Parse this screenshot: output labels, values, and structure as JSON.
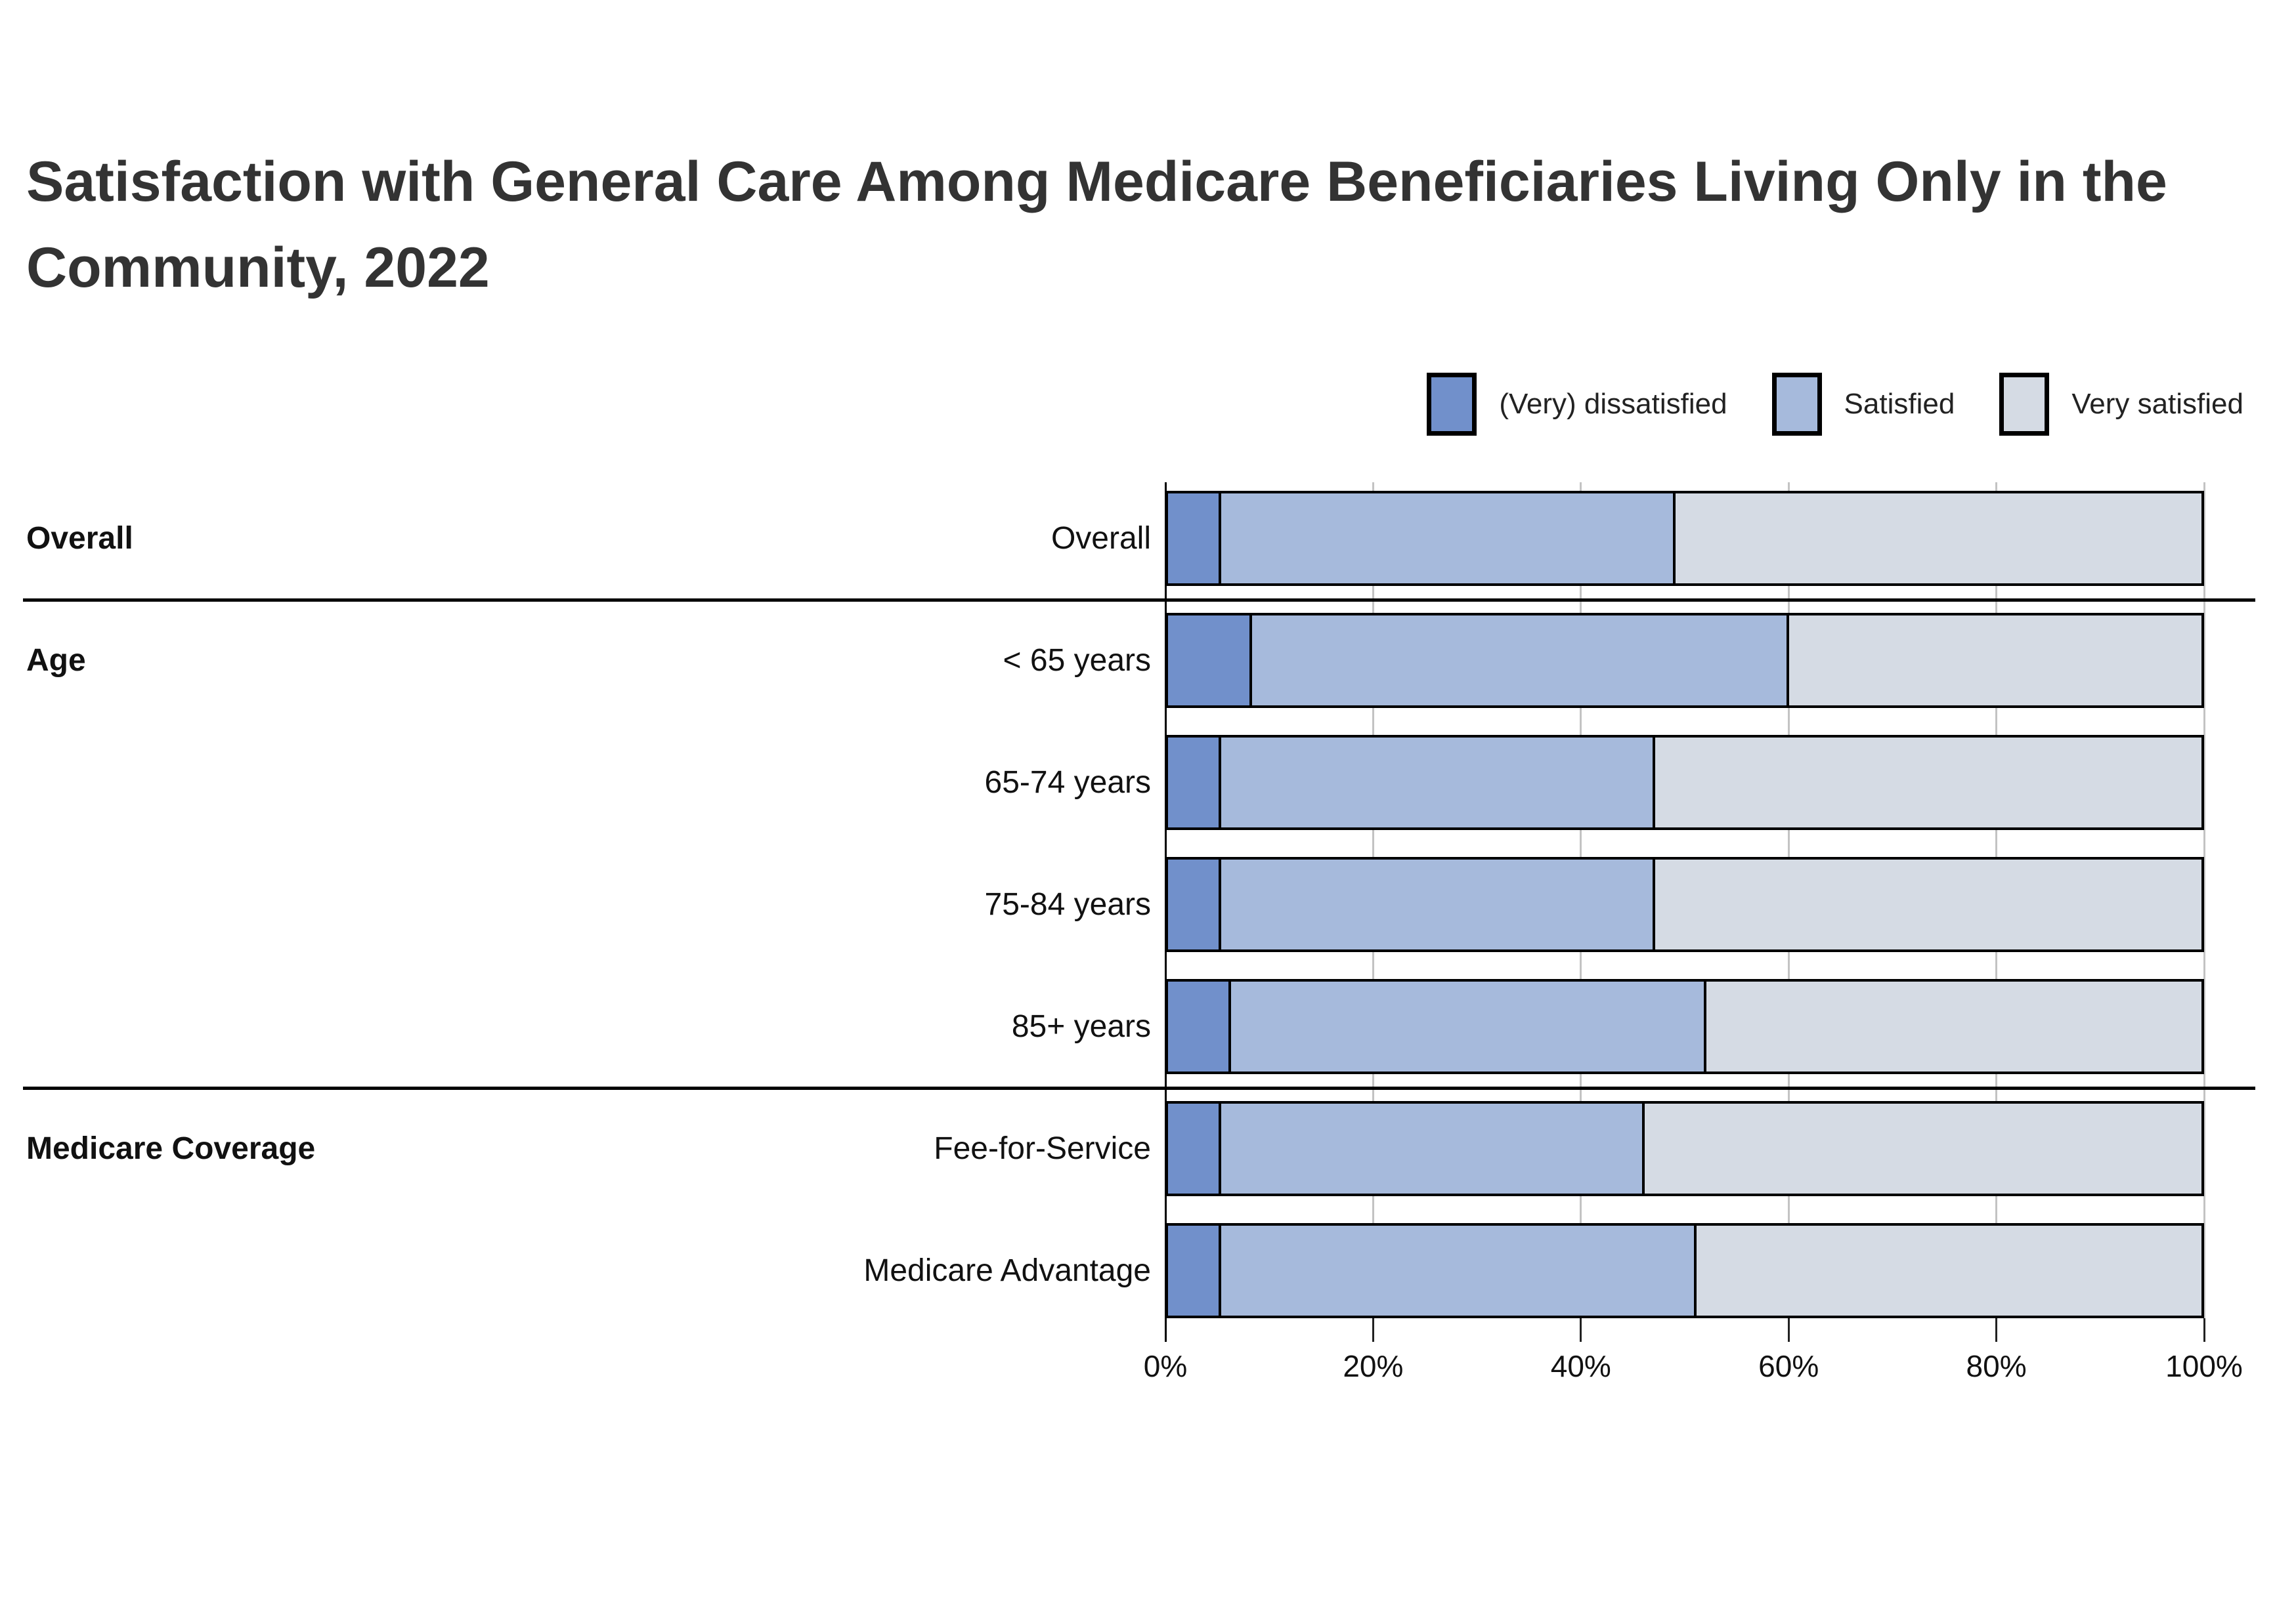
{
  "title": "Satisfaction with General Care Among Medicare Beneficiaries Living Only in the Community, 2022",
  "legend": {
    "items": [
      {
        "label": "(Very) dissatisfied",
        "color": "#7190CB"
      },
      {
        "label": "Satisfied",
        "color": "#A6BADC"
      },
      {
        "label": "Very satisfied",
        "color": "#D5DBE4"
      }
    ]
  },
  "chart_data": {
    "type": "bar",
    "stacked": true,
    "orientation": "horizontal",
    "unit": "percent",
    "title": "Satisfaction with General Care Among Medicare Beneficiaries Living Only in the Community, 2022",
    "categories": [
      "Overall",
      "< 65 years",
      "65-74 years",
      "75-84 years",
      "85+ years",
      "Fee-for-Service",
      "Medicare Advantage"
    ],
    "groups": [
      {
        "label": "Overall",
        "first_row": 0
      },
      {
        "label": "Age",
        "first_row": 1
      },
      {
        "label": "Medicare Coverage",
        "first_row": 5
      }
    ],
    "divider_after_rows": [
      0,
      4
    ],
    "series": [
      {
        "name": "(Very) dissatisfied",
        "color": "#7190CB",
        "values": [
          5,
          8,
          5,
          5,
          6,
          5,
          5
        ]
      },
      {
        "name": "Satisfied",
        "color": "#A6BADC",
        "values": [
          44,
          52,
          42,
          42,
          46,
          41,
          46
        ]
      },
      {
        "name": "Very satisfied",
        "color": "#D5DBE4",
        "values": [
          51,
          40,
          53,
          53,
          48,
          54,
          49
        ]
      }
    ],
    "x_ticks": [
      "0%",
      "20%",
      "40%",
      "60%",
      "80%",
      "100%"
    ],
    "xlim": [
      0,
      100
    ],
    "grid": true,
    "legend_position": "top-right"
  }
}
